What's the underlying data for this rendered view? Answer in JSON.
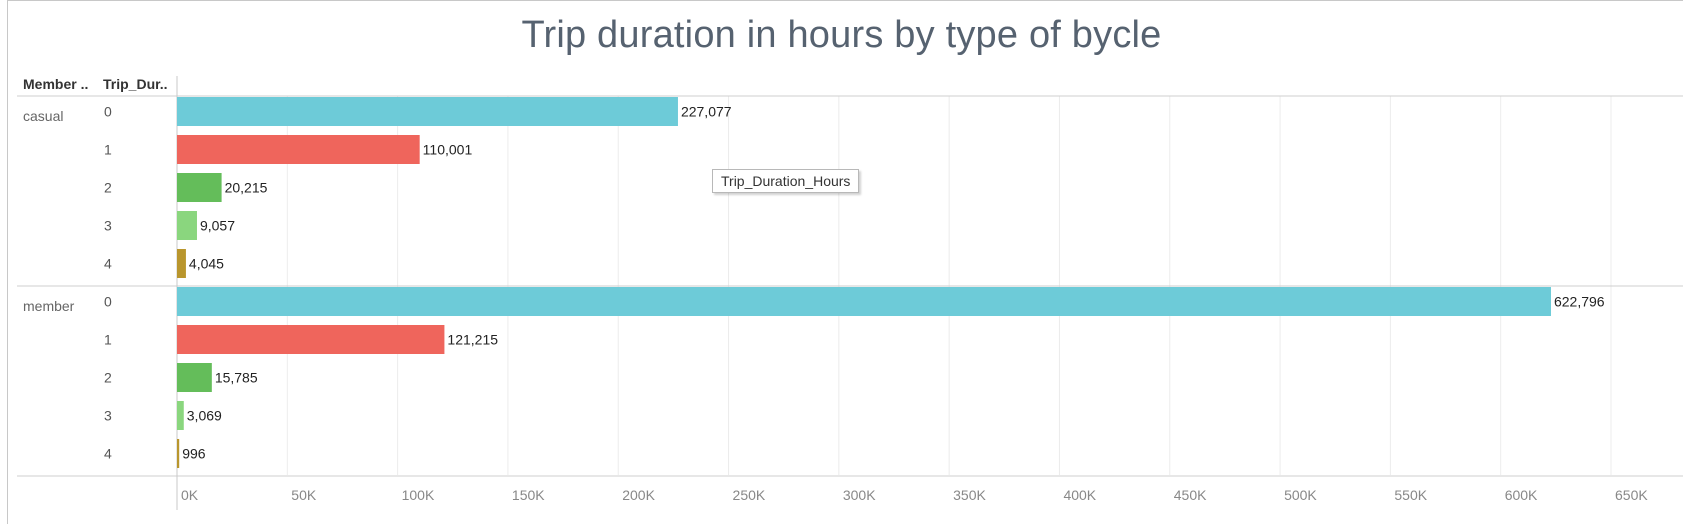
{
  "chart_data": {
    "type": "bar",
    "orientation": "horizontal",
    "title": "Trip duration in hours by type of bycle",
    "column_headers": [
      "Member ..",
      "Trip_Dur.."
    ],
    "tooltip": "Trip_Duration_Hours",
    "groups": [
      {
        "name": "casual",
        "categories": [
          "0",
          "1",
          "2",
          "3",
          "4"
        ],
        "values": [
          227077,
          110001,
          20215,
          9057,
          4045
        ],
        "labels": [
          "227,077",
          "110,001",
          "20,215",
          "9,057",
          "4,045"
        ]
      },
      {
        "name": "member",
        "categories": [
          "0",
          "1",
          "2",
          "3",
          "4"
        ],
        "values": [
          622796,
          121215,
          15785,
          3069,
          996
        ],
        "labels": [
          "622,796",
          "121,215",
          "15,785",
          "3,069",
          "996"
        ]
      }
    ],
    "category_colors": [
      "#6dcbd8",
      "#ef655c",
      "#64bd5a",
      "#8ad67e",
      "#b9962d"
    ],
    "xlim": [
      0,
      680000
    ],
    "x_ticks": [
      0,
      50000,
      100000,
      150000,
      200000,
      250000,
      300000,
      350000,
      400000,
      450000,
      500000,
      550000,
      600000,
      650000
    ],
    "x_tick_labels": [
      "0K",
      "50K",
      "100K",
      "150K",
      "200K",
      "250K",
      "300K",
      "350K",
      "400K",
      "450K",
      "500K",
      "550K",
      "600K",
      "650K"
    ],
    "grid": true,
    "legend": "none"
  }
}
